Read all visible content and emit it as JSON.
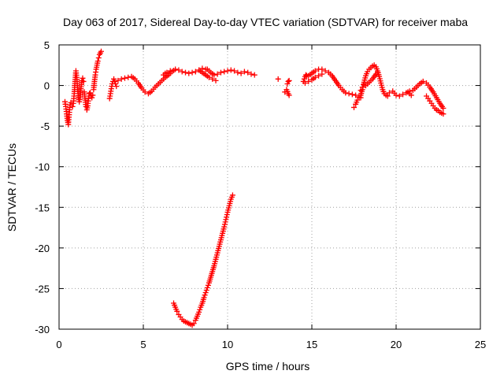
{
  "chart_data": {
    "type": "scatter",
    "title": "Day 063 of 2017, Sidereal Day-to-day VTEC variation (SDTVAR) for receiver maba",
    "xlabel": "GPS time / hours",
    "ylabel": "SDTVAR / TECUs",
    "xlim": [
      0,
      25
    ],
    "ylim": [
      -30,
      5
    ],
    "xticks": [
      0,
      5,
      10,
      15,
      20,
      25
    ],
    "yticks": [
      5,
      0,
      -5,
      -10,
      -15,
      -20,
      -25,
      -30
    ],
    "grid": true,
    "marker": "+",
    "series": [
      {
        "name": "SDTVAR",
        "color": "#ff0000",
        "segments": [
          [
            [
              0.35,
              -2.0
            ],
            [
              0.4,
              -2.6
            ],
            [
              0.45,
              -3.5
            ],
            [
              0.5,
              -4.3
            ],
            [
              0.55,
              -4.8
            ],
            [
              0.6,
              -3.6
            ],
            [
              0.65,
              -2.4
            ],
            [
              0.7,
              -2.1
            ]
          ],
          [
            [
              0.8,
              -2.6
            ],
            [
              0.85,
              -2.2
            ],
            [
              0.9,
              -1.0
            ],
            [
              0.95,
              0.5
            ],
            [
              1.0,
              1.8
            ],
            [
              1.05,
              1.0
            ],
            [
              1.1,
              -0.5
            ],
            [
              1.15,
              -1.5
            ],
            [
              1.2,
              -2.0
            ],
            [
              1.25,
              -1.4
            ],
            [
              1.3,
              -0.4
            ],
            [
              1.35,
              0.6
            ],
            [
              1.4,
              0.9
            ],
            [
              1.45,
              0.5
            ]
          ],
          [
            [
              1.5,
              -0.8
            ],
            [
              1.55,
              -1.8
            ],
            [
              1.6,
              -2.6
            ],
            [
              1.65,
              -3.0
            ],
            [
              1.7,
              -2.5
            ],
            [
              1.75,
              -1.6
            ],
            [
              1.8,
              -1.0
            ],
            [
              1.85,
              -0.9
            ],
            [
              1.9,
              -1.2
            ],
            [
              1.95,
              -1.5
            ],
            [
              2.0,
              -1.2
            ]
          ],
          [
            [
              2.05,
              -0.5
            ],
            [
              2.1,
              0.5
            ],
            [
              2.15,
              1.3
            ],
            [
              2.2,
              2.0
            ],
            [
              2.25,
              2.5
            ],
            [
              2.3,
              3.0
            ],
            [
              2.35,
              3.4
            ],
            [
              2.4,
              3.8
            ],
            [
              2.45,
              4.0
            ],
            [
              2.5,
              4.2
            ]
          ],
          [
            [
              3.0,
              -1.6
            ],
            [
              3.05,
              -1.0
            ],
            [
              3.1,
              -0.4
            ],
            [
              3.15,
              0.2
            ],
            [
              3.2,
              0.5
            ],
            [
              3.25,
              0.8
            ],
            [
              3.3,
              0.5
            ],
            [
              3.35,
              0.2
            ],
            [
              3.4,
              -0.1
            ]
          ],
          [
            [
              3.5,
              0.6
            ],
            [
              3.7,
              0.8
            ],
            [
              3.9,
              0.9
            ],
            [
              4.1,
              1.0
            ],
            [
              4.3,
              1.1
            ],
            [
              4.5,
              0.8
            ],
            [
              4.7,
              0.3
            ],
            [
              4.9,
              -0.3
            ],
            [
              5.1,
              -0.8
            ],
            [
              5.3,
              -1.0
            ],
            [
              5.5,
              -0.7
            ],
            [
              5.7,
              -0.2
            ],
            [
              5.9,
              0.2
            ],
            [
              6.1,
              0.6
            ],
            [
              6.3,
              1.0
            ],
            [
              6.5,
              1.3
            ],
            [
              6.7,
              1.7
            ],
            [
              6.9,
              2.0
            ],
            [
              7.1,
              1.9
            ],
            [
              7.3,
              1.7
            ],
            [
              7.5,
              1.6
            ],
            [
              7.7,
              1.5
            ],
            [
              7.9,
              1.6
            ],
            [
              8.1,
              1.7
            ],
            [
              8.3,
              1.9
            ],
            [
              8.5,
              2.1
            ],
            [
              8.7,
              2.0
            ]
          ],
          [
            [
              6.2,
              1.3
            ],
            [
              6.3,
              1.5
            ],
            [
              6.4,
              1.6
            ],
            [
              6.5,
              1.5
            ],
            [
              6.6,
              1.8
            ]
          ],
          [
            [
              8.3,
              1.9
            ],
            [
              8.5,
              1.6
            ],
            [
              8.7,
              1.3
            ],
            [
              8.9,
              1.0
            ],
            [
              9.1,
              0.8
            ],
            [
              9.3,
              0.6
            ]
          ],
          [
            [
              8.8,
              2.0
            ],
            [
              9.0,
              1.6
            ],
            [
              9.2,
              1.3
            ],
            [
              9.4,
              1.4
            ],
            [
              9.6,
              1.6
            ],
            [
              9.8,
              1.7
            ],
            [
              10.0,
              1.8
            ],
            [
              10.2,
              1.9
            ],
            [
              10.4,
              1.8
            ],
            [
              10.6,
              1.6
            ],
            [
              10.8,
              1.5
            ],
            [
              11.0,
              1.7
            ],
            [
              11.2,
              1.6
            ],
            [
              11.4,
              1.4
            ],
            [
              11.6,
              1.3
            ]
          ],
          [
            [
              6.8,
              -26.8
            ],
            [
              6.9,
              -27.3
            ],
            [
              7.0,
              -27.8
            ],
            [
              7.1,
              -28.2
            ],
            [
              7.2,
              -28.5
            ],
            [
              7.3,
              -28.8
            ],
            [
              7.4,
              -29.0
            ],
            [
              7.5,
              -29.1
            ],
            [
              7.6,
              -29.2
            ],
            [
              7.7,
              -29.3
            ],
            [
              7.8,
              -29.4
            ],
            [
              7.9,
              -29.5
            ],
            [
              8.0,
              -29.3
            ],
            [
              8.1,
              -28.9
            ],
            [
              8.2,
              -28.4
            ],
            [
              8.3,
              -27.9
            ],
            [
              8.4,
              -27.3
            ],
            [
              8.5,
              -26.8
            ],
            [
              8.6,
              -26.1
            ],
            [
              8.7,
              -25.5
            ],
            [
              8.8,
              -24.9
            ],
            [
              8.9,
              -24.3
            ],
            [
              9.0,
              -23.6
            ],
            [
              9.1,
              -22.9
            ],
            [
              9.2,
              -22.2
            ],
            [
              9.3,
              -21.4
            ],
            [
              9.4,
              -20.6
            ],
            [
              9.5,
              -19.8
            ],
            [
              9.6,
              -19.0
            ],
            [
              9.7,
              -18.2
            ],
            [
              9.8,
              -17.4
            ],
            [
              9.9,
              -16.5
            ],
            [
              10.0,
              -15.6
            ],
            [
              10.1,
              -14.8
            ],
            [
              10.2,
              -14.0
            ],
            [
              10.3,
              -13.5
            ]
          ],
          [
            [
              13.0,
              0.8
            ]
          ],
          [
            [
              13.4,
              -0.8
            ],
            [
              13.5,
              -0.5
            ],
            [
              13.6,
              -1.0
            ],
            [
              13.65,
              -1.2
            ]
          ],
          [
            [
              13.55,
              0.2
            ],
            [
              13.6,
              0.5
            ],
            [
              13.65,
              0.6
            ]
          ],
          [
            [
              14.5,
              0.5
            ],
            [
              14.55,
              0.8
            ],
            [
              14.6,
              1.1
            ],
            [
              14.65,
              1.3
            ],
            [
              14.7,
              1.2
            ]
          ],
          [
            [
              14.6,
              0.3
            ],
            [
              14.8,
              0.5
            ],
            [
              15.0,
              0.7
            ],
            [
              15.2,
              1.0
            ],
            [
              15.4,
              1.2
            ],
            [
              15.6,
              1.4
            ]
          ],
          [
            [
              14.8,
              1.2
            ],
            [
              15.0,
              1.5
            ],
            [
              15.2,
              1.8
            ],
            [
              15.4,
              2.0
            ],
            [
              15.6,
              2.0
            ],
            [
              15.8,
              1.8
            ],
            [
              16.0,
              1.6
            ],
            [
              16.2,
              1.2
            ],
            [
              16.4,
              0.6
            ],
            [
              16.6,
              0.0
            ],
            [
              16.8,
              -0.5
            ],
            [
              17.0,
              -0.9
            ],
            [
              17.2,
              -1.0
            ],
            [
              17.4,
              -1.1
            ],
            [
              17.6,
              -1.2
            ],
            [
              17.8,
              -1.4
            ],
            [
              17.9,
              -1.5
            ]
          ],
          [
            [
              17.5,
              -2.7
            ],
            [
              17.6,
              -2.3
            ],
            [
              17.7,
              -1.8
            ],
            [
              17.8,
              -1.4
            ],
            [
              17.9,
              -1.2
            ],
            [
              18.0,
              -0.5
            ],
            [
              18.1,
              0.4
            ],
            [
              18.2,
              1.2
            ],
            [
              18.3,
              1.7
            ],
            [
              18.4,
              2.0
            ],
            [
              18.5,
              2.2
            ],
            [
              18.6,
              2.4
            ],
            [
              18.7,
              2.5
            ],
            [
              18.8,
              2.3
            ],
            [
              18.9,
              1.8
            ],
            [
              19.0,
              1.1
            ],
            [
              19.1,
              0.3
            ],
            [
              19.2,
              -0.5
            ],
            [
              19.3,
              -1.0
            ],
            [
              19.4,
              -1.2
            ],
            [
              19.5,
              -1.3
            ]
          ],
          [
            [
              18.2,
              0.0
            ],
            [
              18.4,
              0.4
            ],
            [
              18.6,
              0.8
            ],
            [
              18.8,
              1.4
            ],
            [
              18.9,
              1.6
            ]
          ],
          [
            [
              17.9,
              -0.6
            ],
            [
              18.0,
              -0.2
            ],
            [
              18.1,
              0.2
            ]
          ],
          [
            [
              19.6,
              -0.9
            ],
            [
              19.8,
              -0.7
            ],
            [
              20.0,
              -1.2
            ],
            [
              20.2,
              -1.3
            ],
            [
              20.4,
              -1.1
            ],
            [
              20.6,
              -0.9
            ],
            [
              20.8,
              -0.7
            ],
            [
              21.0,
              -0.6
            ],
            [
              21.2,
              -0.2
            ],
            [
              21.4,
              0.2
            ],
            [
              21.6,
              0.5
            ],
            [
              21.8,
              0.3
            ],
            [
              22.0,
              -0.2
            ],
            [
              22.2,
              -0.8
            ],
            [
              22.4,
              -1.5
            ],
            [
              22.6,
              -2.2
            ],
            [
              22.8,
              -2.8
            ]
          ],
          [
            [
              21.8,
              -1.3
            ],
            [
              21.9,
              -1.6
            ],
            [
              22.0,
              -1.9
            ],
            [
              22.1,
              -2.2
            ],
            [
              22.2,
              -2.5
            ],
            [
              22.3,
              -2.8
            ],
            [
              22.4,
              -3.0
            ],
            [
              22.5,
              -3.1
            ],
            [
              22.6,
              -3.3
            ],
            [
              22.7,
              -3.4
            ],
            [
              22.8,
              -3.5
            ]
          ],
          [
            [
              20.7,
              -0.8
            ],
            [
              20.8,
              -1.0
            ],
            [
              20.9,
              -1.2
            ]
          ]
        ]
      }
    ]
  }
}
